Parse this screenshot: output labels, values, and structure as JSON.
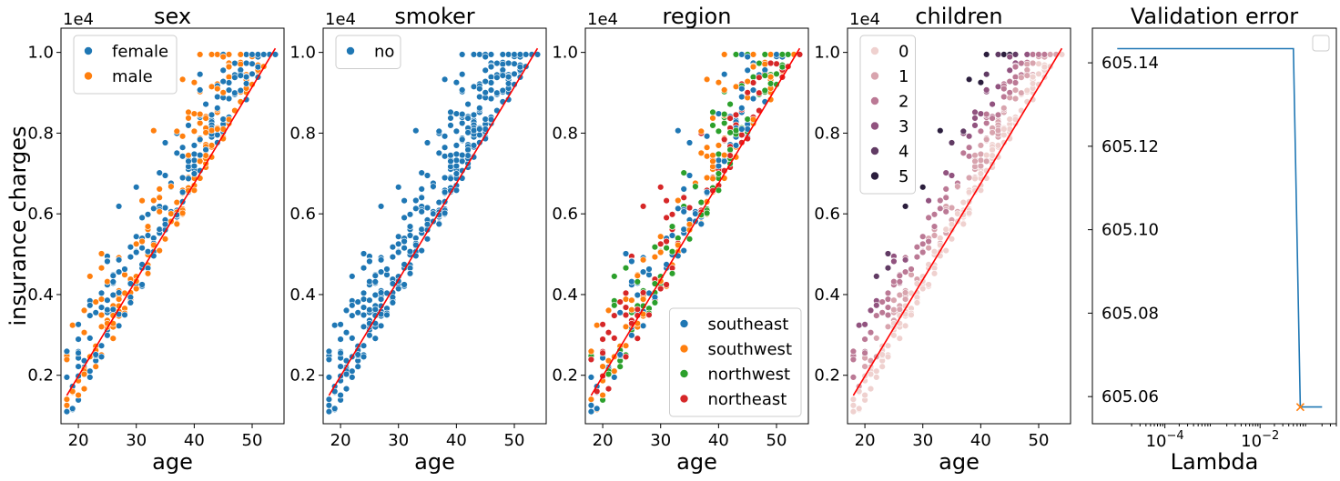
{
  "colors": {
    "sex": {
      "female": "#1f77b4",
      "male": "#ff7f0e"
    },
    "smoker": {
      "no": "#1f77b4"
    },
    "region": {
      "southeast": "#1f77b4",
      "southwest": "#ff7f0e",
      "northwest": "#2ca02c",
      "northeast": "#d62728"
    },
    "children": [
      "#efd1cf",
      "#d8a4ae",
      "#bb7995",
      "#91537f",
      "#613b64",
      "#2b1e3d"
    ],
    "fit_line": "#ff0000",
    "validation_line": "#1f77b4",
    "validation_marker": "#ff7f0e"
  },
  "chart_data": [
    {
      "type": "scatter",
      "title": "sex",
      "xlabel": "age",
      "ylabel": "insurance charges",
      "y_offset_text": "1e4",
      "xlim": [
        17,
        55.5
      ],
      "ylim": [
        800,
        10600
      ],
      "xticks": [
        "20",
        "30",
        "40",
        "50"
      ],
      "yticks": [
        "0.2",
        "0.4",
        "0.6",
        "0.8",
        "1.0"
      ],
      "hue": "sex",
      "legend": {
        "position": "top-left",
        "entries": [
          "female",
          "male"
        ]
      },
      "fit_line": {
        "x": [
          18,
          54
        ],
        "y": [
          1500,
          10100
        ]
      }
    },
    {
      "type": "scatter",
      "title": "smoker",
      "xlabel": "age",
      "y_offset_text": "1e4",
      "xlim": [
        17,
        55.5
      ],
      "ylim": [
        800,
        10600
      ],
      "xticks": [
        "20",
        "30",
        "40",
        "50"
      ],
      "yticks": [
        "0.2",
        "0.4",
        "0.6",
        "0.8",
        "1.0"
      ],
      "hue": "smoker",
      "legend": {
        "position": "top-left",
        "entries": [
          "no"
        ]
      },
      "fit_line": {
        "x": [
          18,
          54
        ],
        "y": [
          1500,
          10100
        ]
      }
    },
    {
      "type": "scatter",
      "title": "region",
      "xlabel": "age",
      "y_offset_text": "1e4",
      "xlim": [
        17,
        55.5
      ],
      "ylim": [
        800,
        10600
      ],
      "xticks": [
        "20",
        "30",
        "40",
        "50"
      ],
      "yticks": [
        "0.2",
        "0.4",
        "0.6",
        "0.8",
        "1.0"
      ],
      "hue": "region",
      "legend": {
        "position": "bottom-right",
        "entries": [
          "southeast",
          "southwest",
          "northwest",
          "northeast"
        ]
      },
      "fit_line": {
        "x": [
          18,
          54
        ],
        "y": [
          1500,
          10100
        ]
      }
    },
    {
      "type": "scatter",
      "title": "children",
      "xlabel": "age",
      "y_offset_text": "1e4",
      "xlim": [
        17,
        55.5
      ],
      "ylim": [
        800,
        10600
      ],
      "xticks": [
        "20",
        "30",
        "40",
        "50"
      ],
      "yticks": [
        "0.2",
        "0.4",
        "0.6",
        "0.8",
        "1.0"
      ],
      "hue": "children",
      "legend": {
        "position": "top-left",
        "entries": [
          "0",
          "1",
          "2",
          "3",
          "4",
          "5"
        ]
      },
      "fit_line": {
        "x": [
          18,
          54
        ],
        "y": [
          1500,
          10100
        ]
      }
    },
    {
      "type": "line",
      "title": "Validation error",
      "xlabel": "Lambda",
      "x_scale": "log",
      "xlim": [
        3e-06,
        0.4
      ],
      "ylim": [
        605.0535,
        605.1483
      ],
      "xticks": [
        "10^-4",
        "10^-2"
      ],
      "yticks": [
        "605.06",
        "605.08",
        "605.10",
        "605.12",
        "605.14"
      ],
      "legend": {
        "position": "top-right",
        "entries": []
      },
      "series": [
        {
          "x": [
            1e-05,
            0.0001,
            0.001,
            0.01,
            0.05,
            0.07,
            0.1,
            0.2
          ],
          "y": [
            605.1434,
            605.1434,
            605.1434,
            605.1434,
            605.1434,
            605.0575,
            605.0575,
            605.0575
          ]
        }
      ],
      "min_marker": {
        "x": 0.07,
        "y": 605.0575
      }
    }
  ]
}
